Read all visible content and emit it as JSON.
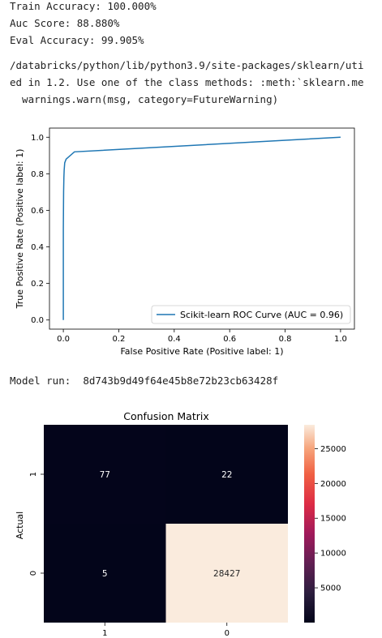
{
  "output": {
    "train_accuracy": "Train Accuracy: 100.000%",
    "auc_score": "Auc Score: 88.880%",
    "eval_accuracy": "Eval Accuracy: 99.905%",
    "warning_line1": "/databricks/python/lib/python3.9/site-packages/sklearn/uti",
    "warning_line2": "ed in 1.2. Use one of the class methods: :meth:`sklearn.me",
    "warning_line3": "  warnings.warn(msg, category=FutureWarning)",
    "model_run_label": "Model run:",
    "model_run_id": "8d743b9d49f64e45b8e72b23cb63428f"
  },
  "chart_data": [
    {
      "type": "line",
      "title": "",
      "xlabel": "False Positive Rate (Positive label: 1)",
      "ylabel": "True Positive Rate (Positive label: 1)",
      "xlim": [
        -0.05,
        1.05
      ],
      "ylim": [
        -0.05,
        1.05
      ],
      "xticks": [
        "0.0",
        "0.2",
        "0.4",
        "0.6",
        "0.8",
        "1.0"
      ],
      "yticks": [
        "0.0",
        "0.2",
        "0.4",
        "0.6",
        "0.8",
        "1.0"
      ],
      "series": [
        {
          "name": "Scikit-learn ROC Curve (AUC = 0.96)",
          "color": "#1f77b4",
          "x": [
            0,
            0,
            0.001,
            0.002,
            0.003,
            0.005,
            0.01,
            0.04,
            1.0
          ],
          "y": [
            0,
            0.5,
            0.7,
            0.78,
            0.82,
            0.86,
            0.88,
            0.92,
            1.0
          ]
        }
      ],
      "legend": "lower-right"
    },
    {
      "type": "heatmap",
      "title": "Confusion Matrix",
      "ylabel": "Actual",
      "xlabel": "",
      "row_labels": [
        "1",
        "0"
      ],
      "col_labels": [
        "1",
        "0"
      ],
      "values": [
        [
          77,
          22
        ],
        [
          5,
          28427
        ]
      ],
      "colorbar_ticks": [
        "25000",
        "20000",
        "15000",
        "10000",
        "5000"
      ],
      "colorbar_range": [
        0,
        28427
      ],
      "colormap": "rocket"
    }
  ]
}
